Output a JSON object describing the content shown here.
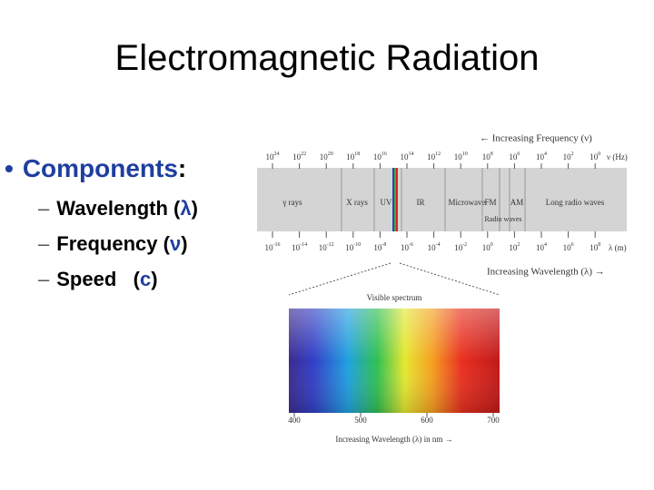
{
  "title": "Electromagnetic Radiation",
  "bullet": {
    "marker": "•",
    "segments": [
      {
        "text": "Components",
        "accent": true
      },
      {
        "text": ":",
        "accent": false
      }
    ]
  },
  "sub_items": [
    {
      "marker": "–",
      "segments": [
        {
          "text": "Wavelength (",
          "accent": false
        },
        {
          "text": "λ",
          "accent": true
        },
        {
          "text": ")",
          "accent": false
        }
      ]
    },
    {
      "marker": "–",
      "segments": [
        {
          "text": "Frequency (",
          "accent": false
        },
        {
          "text": "ν",
          "accent": true
        },
        {
          "text": ")",
          "accent": false
        }
      ]
    },
    {
      "marker": "–",
      "segments": [
        {
          "text": "Speed   (",
          "accent": false
        },
        {
          "text": "c",
          "accent": true
        },
        {
          "text": ")",
          "accent": false
        }
      ]
    }
  ],
  "accent_color": "#1f3f9f",
  "spectrum": {
    "frequency_caption": "← Increasing Frequency (ν)",
    "frequency_ticks": [
      {
        "base": "10",
        "exp": "24"
      },
      {
        "base": "10",
        "exp": "22"
      },
      {
        "base": "10",
        "exp": "20"
      },
      {
        "base": "10",
        "exp": "18"
      },
      {
        "base": "10",
        "exp": "16"
      },
      {
        "base": "10",
        "exp": "14"
      },
      {
        "base": "10",
        "exp": "12"
      },
      {
        "base": "10",
        "exp": "10"
      },
      {
        "base": "10",
        "exp": "8"
      },
      {
        "base": "10",
        "exp": "6"
      },
      {
        "base": "10",
        "exp": "4"
      },
      {
        "base": "10",
        "exp": "2"
      },
      {
        "base": "10",
        "exp": "0"
      }
    ],
    "frequency_unit": "ν (Hz)",
    "regions": [
      "γ rays",
      "X rays",
      "UV",
      "IR",
      "Microwave",
      "FM",
      "AM",
      "Long radio waves"
    ],
    "radio_label": "Radio waves",
    "wavelength_ticks": [
      {
        "base": "10",
        "exp": "-16"
      },
      {
        "base": "10",
        "exp": "-14"
      },
      {
        "base": "10",
        "exp": "-12"
      },
      {
        "base": "10",
        "exp": "-10"
      },
      {
        "base": "10",
        "exp": "-8"
      },
      {
        "base": "10",
        "exp": "-6"
      },
      {
        "base": "10",
        "exp": "-4"
      },
      {
        "base": "10",
        "exp": "-2"
      },
      {
        "base": "10",
        "exp": "0"
      },
      {
        "base": "10",
        "exp": "2"
      },
      {
        "base": "10",
        "exp": "4"
      },
      {
        "base": "10",
        "exp": "6"
      },
      {
        "base": "10",
        "exp": "8"
      }
    ],
    "wavelength_unit": "λ (m)",
    "wavelength_caption": "Increasing Wavelength (λ) →",
    "visible_title": "Visible spectrum",
    "visible_ticks": [
      "400",
      "500",
      "600",
      "700"
    ],
    "visible_caption": "Increasing Wavelength (λ) in nm →"
  }
}
